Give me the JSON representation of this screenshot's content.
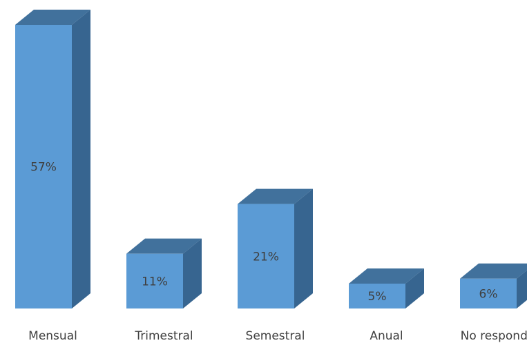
{
  "chart_data": {
    "type": "bar",
    "title": "",
    "xlabel": "",
    "ylabel": "",
    "categories": [
      "Mensual",
      "Trimestral",
      "Semestral",
      "Anual",
      "No responde"
    ],
    "values": [
      57,
      11,
      21,
      5,
      6
    ],
    "data_labels": [
      "57%",
      "11%",
      "21%",
      "5%",
      "6%"
    ],
    "unit": "%",
    "ylim": [
      0,
      57
    ],
    "grid": false,
    "legend": "none",
    "three_d": true,
    "colors": {
      "front": "#5b9bd5",
      "top": "#41719c",
      "side": "#376590"
    }
  }
}
